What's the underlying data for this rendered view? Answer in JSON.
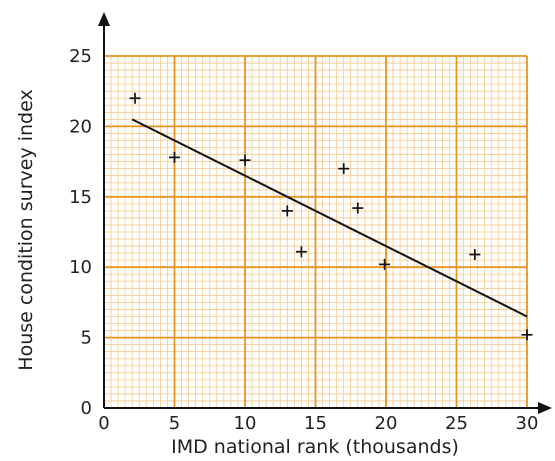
{
  "chart_data": {
    "type": "scatter",
    "xlabel": "IMD national rank (thousands)",
    "ylabel": "House condition survey index",
    "xlim": [
      0,
      30
    ],
    "ylim": [
      0,
      25
    ],
    "x_ticks": [
      "0",
      "5",
      "10",
      "15",
      "20",
      "25",
      "30"
    ],
    "y_ticks": [
      "0",
      "5",
      "10",
      "15",
      "20",
      "25"
    ],
    "grid": "graph paper (major every 5, minor every 0.5)",
    "grid_color": "#E8931E",
    "minor_grid_color": "#F6C98C",
    "marker": "+",
    "points": [
      {
        "x": 2.2,
        "y": 22.0
      },
      {
        "x": 5.0,
        "y": 17.8
      },
      {
        "x": 10.0,
        "y": 17.6
      },
      {
        "x": 13.0,
        "y": 14.0
      },
      {
        "x": 14.0,
        "y": 11.1
      },
      {
        "x": 17.0,
        "y": 17.0
      },
      {
        "x": 18.0,
        "y": 14.2
      },
      {
        "x": 19.9,
        "y": 10.2
      },
      {
        "x": 26.3,
        "y": 10.9
      },
      {
        "x": 30.0,
        "y": 5.2
      }
    ],
    "trend_line": {
      "x": [
        2.0,
        30.0
      ],
      "y": [
        20.5,
        6.5
      ]
    }
  }
}
